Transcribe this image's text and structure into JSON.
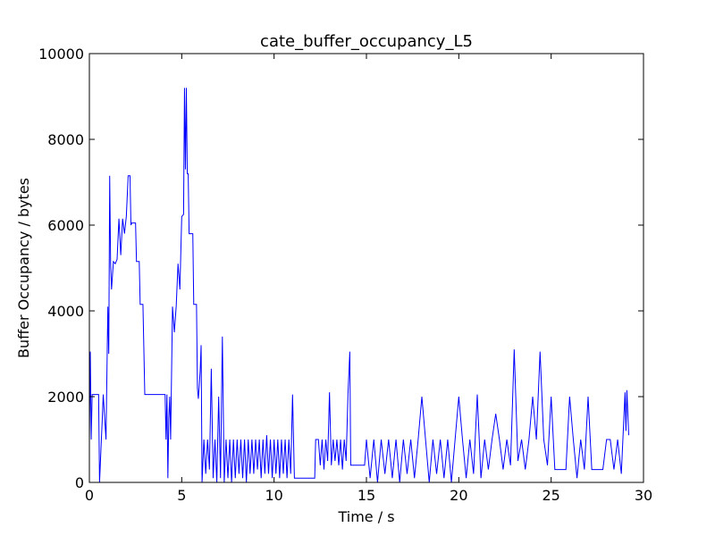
{
  "chart_data": {
    "type": "line",
    "title": "cate_buffer_occupancy_L5",
    "xlabel": "Time / s",
    "ylabel": "Buffer Occupancy / bytes",
    "color": "#0000ff",
    "grid": false,
    "xlim": [
      0,
      30
    ],
    "xticks": [
      0,
      5,
      10,
      15,
      20,
      25,
      30
    ],
    "ylim": [
      0,
      10000
    ],
    "yticks": [
      0,
      2000,
      4000,
      6000,
      8000,
      10000
    ],
    "x": [
      0,
      0.05,
      0.1,
      0.15,
      0.5,
      0.55,
      0.7,
      0.75,
      0.9,
      1.0,
      1.05,
      1.1,
      1.15,
      1.2,
      1.3,
      1.4,
      1.5,
      1.6,
      1.7,
      1.8,
      1.9,
      2.0,
      2.1,
      2.2,
      2.25,
      2.3,
      2.5,
      2.55,
      2.7,
      2.75,
      2.9,
      2.95,
      3.0,
      4.1,
      4.15,
      4.2,
      4.25,
      4.3,
      4.35,
      4.4,
      4.5,
      4.6,
      4.7,
      4.8,
      4.9,
      5.0,
      5.1,
      5.15,
      5.2,
      5.25,
      5.3,
      5.35,
      5.4,
      5.6,
      5.65,
      5.8,
      5.85,
      5.9,
      6.0,
      6.05,
      6.1,
      6.2,
      6.3,
      6.4,
      6.5,
      6.6,
      6.7,
      6.8,
      6.9,
      7.0,
      7.1,
      7.2,
      7.3,
      7.4,
      7.5,
      7.6,
      7.7,
      7.8,
      7.9,
      8.0,
      8.1,
      8.2,
      8.3,
      8.4,
      8.5,
      8.6,
      8.7,
      8.8,
      8.9,
      9.0,
      9.1,
      9.2,
      9.3,
      9.4,
      9.5,
      9.6,
      9.7,
      9.8,
      9.9,
      10.0,
      10.1,
      10.2,
      10.3,
      10.4,
      10.5,
      10.6,
      10.7,
      10.8,
      10.9,
      11.0,
      11.1,
      12.2,
      12.25,
      12.4,
      12.5,
      12.6,
      12.7,
      12.8,
      12.9,
      13.0,
      13.1,
      13.2,
      13.3,
      13.4,
      13.5,
      13.6,
      13.7,
      13.8,
      13.9,
      14.0,
      14.1,
      14.15,
      14.9,
      15.0,
      15.2,
      15.4,
      15.6,
      15.8,
      16.0,
      16.2,
      16.4,
      16.6,
      16.8,
      17.0,
      17.2,
      17.4,
      17.6,
      17.8,
      18.0,
      18.2,
      18.4,
      18.6,
      18.8,
      19.0,
      19.2,
      19.4,
      19.6,
      19.8,
      20.0,
      20.2,
      20.4,
      20.6,
      20.8,
      21.0,
      21.2,
      21.4,
      21.6,
      21.8,
      22.0,
      22.2,
      22.4,
      22.6,
      22.8,
      23.0,
      23.2,
      23.4,
      23.6,
      23.8,
      24.0,
      24.2,
      24.4,
      24.6,
      24.8,
      25.0,
      25.2,
      25.4,
      25.6,
      25.8,
      26.0,
      26.2,
      26.4,
      26.6,
      26.8,
      27.0,
      27.2,
      27.4,
      27.6,
      27.8,
      28.0,
      28.2,
      28.4,
      28.6,
      28.8,
      29.0,
      29.05,
      29.1,
      29.2
    ],
    "values": [
      1000,
      3050,
      1000,
      2050,
      2050,
      0,
      1500,
      2050,
      1000,
      4100,
      3000,
      7150,
      5100,
      4500,
      5150,
      5100,
      5200,
      6150,
      5300,
      6150,
      5800,
      6200,
      7150,
      7150,
      6000,
      6050,
      6050,
      5150,
      5150,
      4150,
      4150,
      3100,
      2050,
      2050,
      1000,
      2050,
      100,
      1500,
      2000,
      1000,
      4100,
      3500,
      4100,
      5100,
      4500,
      6200,
      6250,
      9200,
      7300,
      9200,
      7200,
      7200,
      5800,
      5800,
      4150,
      4150,
      2200,
      1950,
      2600,
      3200,
      0,
      1000,
      200,
      1000,
      300,
      2650,
      100,
      1000,
      0,
      2000,
      100,
      3400,
      0,
      1000,
      100,
      1000,
      0,
      1000,
      100,
      1000,
      200,
      1000,
      100,
      1000,
      0,
      1000,
      200,
      1000,
      200,
      1000,
      300,
      1000,
      100,
      1000,
      200,
      1100,
      200,
      1000,
      100,
      1000,
      200,
      1000,
      100,
      1000,
      200,
      1000,
      100,
      1000,
      200,
      2050,
      100,
      100,
      1000,
      1000,
      400,
      1000,
      300,
      1000,
      500,
      2100,
      400,
      1000,
      500,
      1000,
      400,
      1000,
      300,
      1000,
      500,
      2050,
      3050,
      400,
      400,
      1000,
      100,
      1000,
      0,
      1000,
      200,
      1000,
      100,
      1000,
      0,
      1000,
      200,
      1000,
      100,
      1000,
      2000,
      1000,
      0,
      1000,
      200,
      1000,
      100,
      1000,
      0,
      1000,
      2000,
      1000,
      100,
      1000,
      200,
      2050,
      100,
      1000,
      300,
      1000,
      1600,
      1000,
      300,
      1000,
      400,
      3100,
      500,
      1000,
      300,
      1000,
      2000,
      1000,
      3050,
      1000,
      400,
      2000,
      300,
      300,
      300,
      300,
      2000,
      1000,
      100,
      1000,
      300,
      2000,
      300,
      300,
      300,
      300,
      1000,
      1000,
      300,
      1000,
      200,
      2100,
      1200,
      2150,
      1100
    ]
  }
}
